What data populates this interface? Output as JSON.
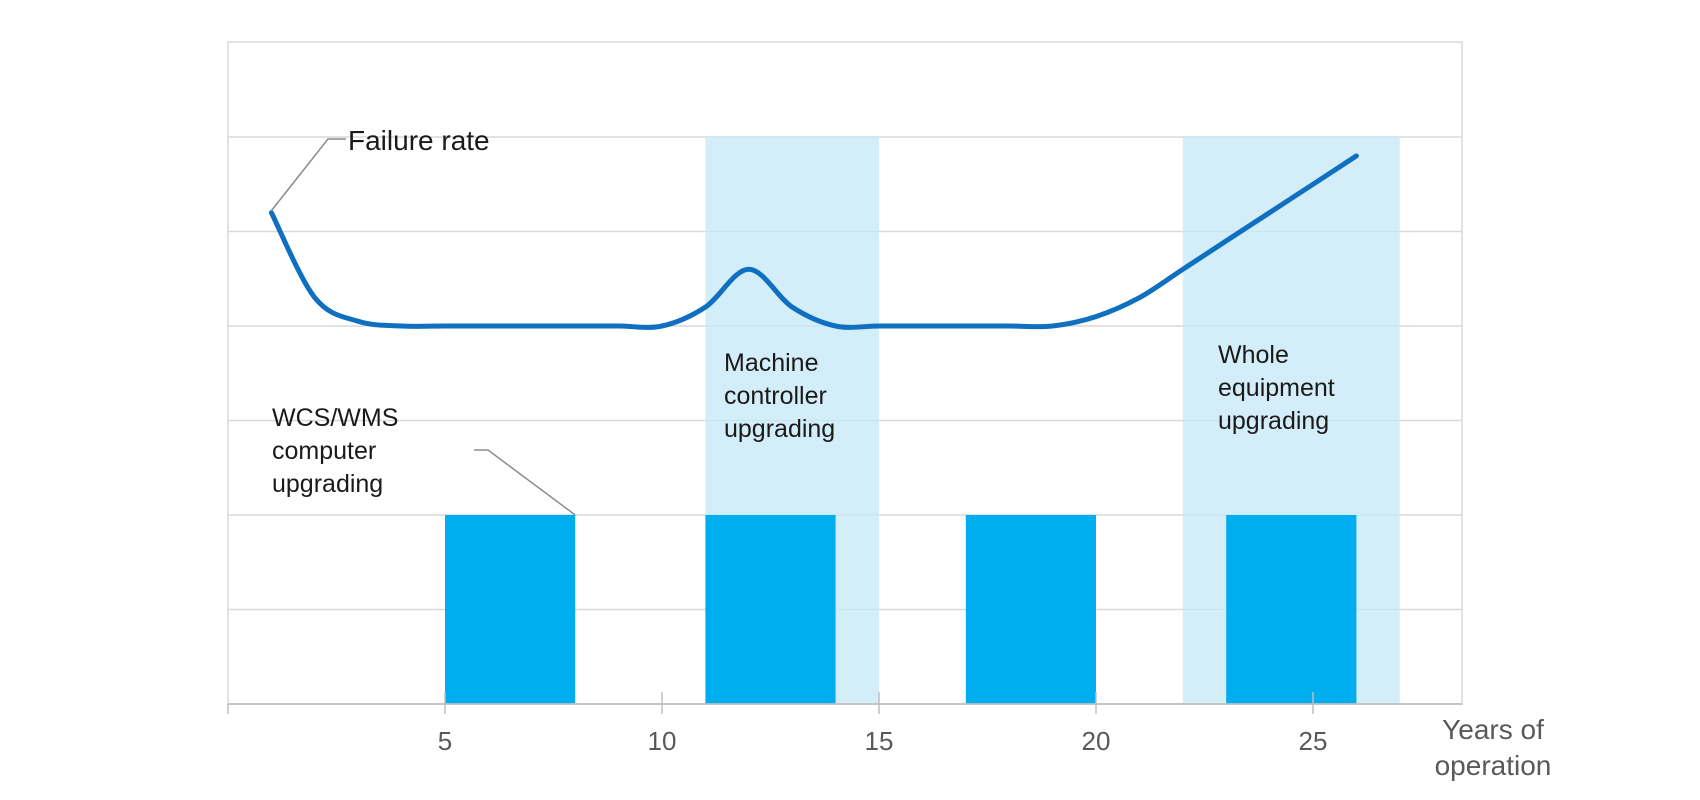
{
  "chart_data": {
    "type": "bar",
    "xlabel": [
      "Years of",
      "operation"
    ],
    "xlim": [
      0,
      28.5
    ],
    "ylim": [
      0,
      7
    ],
    "x_ticks": [
      5,
      10,
      15,
      20,
      25
    ],
    "grid": true,
    "colors": {
      "bar": "#00aeef",
      "band": "#d3eef9",
      "line": "#0f6fc0",
      "grid": "#d9d9d9",
      "axis": "#bfbfbf"
    },
    "bars": [
      {
        "x_start": 5,
        "x_end": 8,
        "value": 2
      },
      {
        "x_start": 11,
        "x_end": 14,
        "value": 2
      },
      {
        "x_start": 17,
        "x_end": 20,
        "value": 2
      },
      {
        "x_start": 23,
        "x_end": 26,
        "value": 2
      }
    ],
    "bands": [
      {
        "x_start": 11,
        "x_end": 15,
        "y_top": 6
      },
      {
        "x_start": 22,
        "x_end": 27,
        "y_top": 6
      }
    ],
    "series": [
      {
        "name": "Failure rate",
        "points": [
          [
            1,
            5.2
          ],
          [
            2,
            4.3
          ],
          [
            3,
            4.05
          ],
          [
            4,
            4.0
          ],
          [
            5,
            4.0
          ],
          [
            6,
            4.0
          ],
          [
            7,
            4.0
          ],
          [
            8,
            4.0
          ],
          [
            9,
            4.0
          ],
          [
            10,
            4.0
          ],
          [
            11,
            4.2
          ],
          [
            12,
            4.6
          ],
          [
            13,
            4.2
          ],
          [
            14,
            4.0
          ],
          [
            15,
            4.0
          ],
          [
            16,
            4.0
          ],
          [
            17,
            4.0
          ],
          [
            18,
            4.0
          ],
          [
            19,
            4.0
          ],
          [
            20,
            4.1
          ],
          [
            21,
            4.3
          ],
          [
            22,
            4.6
          ],
          [
            23,
            4.9
          ],
          [
            24,
            5.2
          ],
          [
            25,
            5.5
          ],
          [
            26,
            5.8
          ]
        ]
      }
    ],
    "annotations": [
      {
        "id": "failure-rate",
        "lines": [
          "Failure rate"
        ]
      },
      {
        "id": "wcs",
        "lines": [
          "WCS/WMS",
          "computer",
          "upgrading"
        ]
      },
      {
        "id": "machine",
        "lines": [
          "Machine",
          "controller",
          "upgrading"
        ]
      },
      {
        "id": "whole",
        "lines": [
          "Whole",
          "equipment",
          "upgrading"
        ]
      }
    ]
  }
}
